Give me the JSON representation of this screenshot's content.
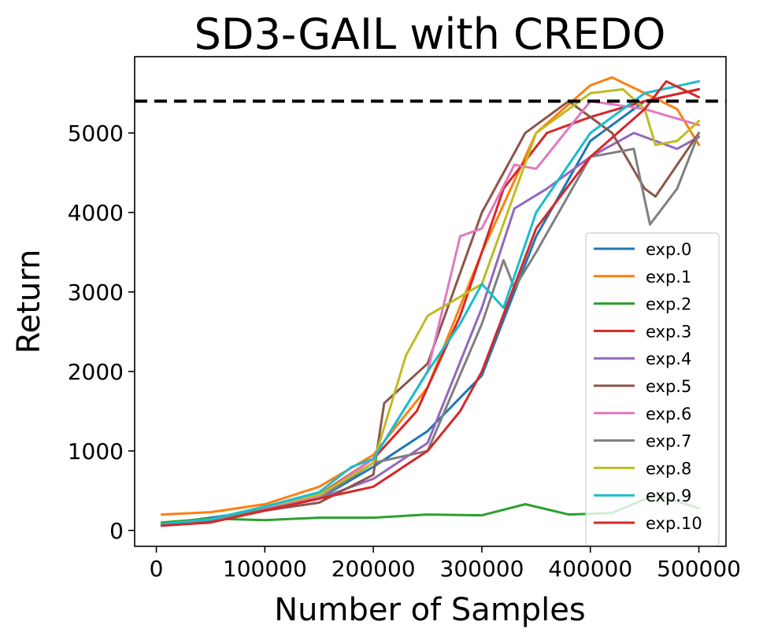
{
  "chart_data": {
    "type": "line",
    "title": "SD3-GAIL with CREDO",
    "xlabel": "Number of Samples",
    "ylabel": "Return",
    "xlim": [
      -20000,
      525000
    ],
    "ylim": [
      -200,
      5960
    ],
    "xticks": [
      0,
      100000,
      200000,
      300000,
      400000,
      500000
    ],
    "yticks": [
      0,
      1000,
      2000,
      3000,
      4000,
      5000
    ],
    "xtick_labels": [
      "0",
      "100000",
      "200000",
      "300000",
      "400000",
      "500000"
    ],
    "ytick_labels": [
      "0",
      "1000",
      "2000",
      "3000",
      "4000",
      "5000"
    ],
    "reference_line": {
      "y": 5400,
      "style": "dashed",
      "color": "#000000"
    },
    "legend_position": "center-right",
    "series": [
      {
        "name": "exp.0",
        "color": "#1f77b4",
        "x": [
          5000,
          50000,
          100000,
          150000,
          200000,
          250000,
          300000,
          350000,
          400000,
          450000,
          500000
        ],
        "y": [
          80,
          160,
          260,
          400,
          800,
          1250,
          1950,
          3700,
          4900,
          5400,
          5550
        ]
      },
      {
        "name": "exp.1",
        "color": "#ff7f0e",
        "x": [
          5000,
          50000,
          100000,
          150000,
          200000,
          250000,
          300000,
          350000,
          400000,
          420000,
          450000,
          480000,
          500000
        ],
        "y": [
          200,
          230,
          330,
          550,
          950,
          1800,
          3500,
          5000,
          5600,
          5700,
          5500,
          5300,
          4850
        ]
      },
      {
        "name": "exp.2",
        "color": "#2ca02c",
        "x": [
          5000,
          50000,
          100000,
          150000,
          200000,
          250000,
          300000,
          340000,
          380000,
          420000,
          460000,
          500000
        ],
        "y": [
          100,
          150,
          130,
          160,
          160,
          200,
          190,
          330,
          200,
          220,
          450,
          280
        ]
      },
      {
        "name": "exp.3",
        "color": "#d62728",
        "x": [
          5000,
          50000,
          100000,
          150000,
          200000,
          240000,
          280000,
          320000,
          360000,
          400000,
          450000,
          500000
        ],
        "y": [
          80,
          130,
          300,
          450,
          900,
          1500,
          2700,
          4300,
          5000,
          5200,
          5400,
          5550
        ]
      },
      {
        "name": "exp.4",
        "color": "#9467bd",
        "x": [
          5000,
          50000,
          100000,
          150000,
          200000,
          250000,
          300000,
          330000,
          360000,
          400000,
          440000,
          480000,
          500000
        ],
        "y": [
          60,
          120,
          250,
          400,
          650,
          1100,
          2800,
          4050,
          4300,
          4700,
          5000,
          4800,
          4950
        ]
      },
      {
        "name": "exp.5",
        "color": "#8c564b",
        "x": [
          5000,
          50000,
          100000,
          150000,
          200000,
          210000,
          250000,
          300000,
          340000,
          380000,
          420000,
          450000,
          460000,
          500000
        ],
        "y": [
          70,
          120,
          250,
          350,
          700,
          1600,
          2100,
          4000,
          5000,
          5400,
          5000,
          4300,
          4200,
          5000
        ]
      },
      {
        "name": "exp.6",
        "color": "#e377c2",
        "x": [
          5000,
          50000,
          100000,
          150000,
          200000,
          250000,
          280000,
          300000,
          330000,
          350000,
          400000,
          450000,
          500000
        ],
        "y": [
          60,
          100,
          270,
          430,
          900,
          2000,
          3700,
          3800,
          4600,
          4550,
          5400,
          5300,
          5100
        ]
      },
      {
        "name": "exp.7",
        "color": "#7f7f7f",
        "x": [
          5000,
          50000,
          100000,
          150000,
          200000,
          250000,
          300000,
          320000,
          330000,
          350000,
          400000,
          440000,
          455000,
          480000,
          500000
        ],
        "y": [
          80,
          140,
          260,
          400,
          850,
          1000,
          2600,
          3400,
          3050,
          3500,
          4700,
          4800,
          3850,
          4300,
          5000
        ]
      },
      {
        "name": "exp.8",
        "color": "#bcbd22",
        "x": [
          5000,
          50000,
          100000,
          150000,
          200000,
          230000,
          250000,
          300000,
          350000,
          400000,
          430000,
          450000,
          460000,
          480000,
          500000
        ],
        "y": [
          80,
          140,
          300,
          450,
          850,
          2200,
          2700,
          3100,
          5000,
          5500,
          5550,
          5300,
          4850,
          4900,
          5150
        ]
      },
      {
        "name": "exp.9",
        "color": "#17becf",
        "x": [
          5000,
          50000,
          100000,
          150000,
          180000,
          200000,
          250000,
          280000,
          300000,
          320000,
          350000,
          400000,
          450000,
          500000
        ],
        "y": [
          80,
          140,
          300,
          480,
          800,
          900,
          2000,
          2600,
          3100,
          2800,
          4000,
          5000,
          5500,
          5650
        ]
      },
      {
        "name": "exp.10",
        "color": "#d62728",
        "x": [
          5000,
          50000,
          100000,
          150000,
          200000,
          250000,
          280000,
          300000,
          350000,
          400000,
          450000,
          470000,
          500000
        ],
        "y": [
          60,
          100,
          250,
          400,
          550,
          1000,
          1500,
          2000,
          3800,
          4700,
          5300,
          5650,
          5450
        ]
      }
    ]
  }
}
